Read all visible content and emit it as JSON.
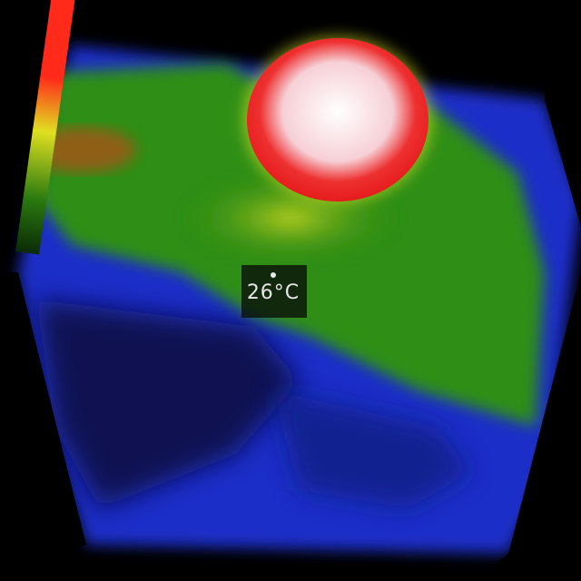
{
  "readout": {
    "temperature": "26°C"
  },
  "icons": {
    "marker": "crosshair-dot-icon"
  },
  "colors": {
    "background": "#000000",
    "cold": "#1e34e6",
    "mid": "#2e8a14",
    "warm": "#d8e020",
    "hot": "#ee2020",
    "hottest": "#ffffff"
  }
}
